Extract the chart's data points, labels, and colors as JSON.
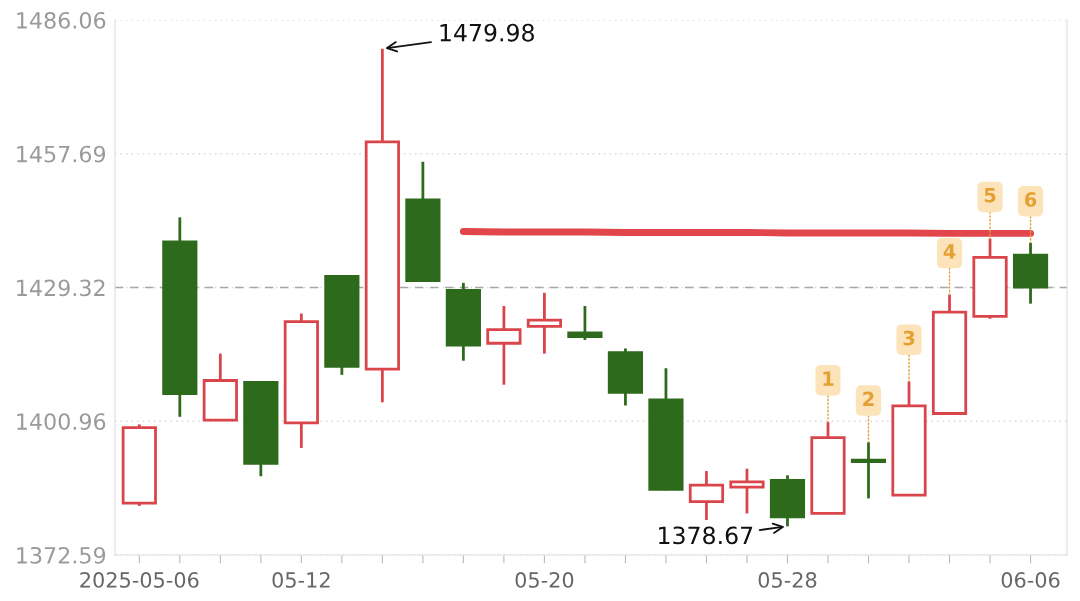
{
  "chart_data": {
    "type": "candlestick",
    "categories": [
      "2025-05-06",
      null,
      null,
      null,
      "05-12",
      null,
      null,
      null,
      null,
      null,
      "05-20",
      null,
      null,
      null,
      null,
      null,
      "05-28",
      null,
      null,
      null,
      null,
      null,
      "06-06"
    ],
    "ohlc": [
      [
        1383.6,
        1400.3,
        1383.0,
        1399.6
      ],
      [
        1439.0,
        1444.2,
        1401.9,
        1406.8
      ],
      [
        1401.2,
        1415.3,
        1401.1,
        1409.6
      ],
      [
        1409.2,
        1409.2,
        1389.3,
        1392.0
      ],
      [
        1400.6,
        1423.8,
        1395.3,
        1422.1
      ],
      [
        1431.7,
        1431.7,
        1410.8,
        1412.6
      ],
      [
        1412.0,
        1479.98,
        1405.0,
        1460.2
      ],
      [
        1447.9,
        1456.0,
        1430.5,
        1430.8
      ],
      [
        1428.7,
        1430.3,
        1413.8,
        1417.1
      ],
      [
        1417.5,
        1425.4,
        1408.7,
        1420.4
      ],
      [
        1421.1,
        1428.2,
        1415.3,
        1422.4
      ],
      [
        1419.7,
        1425.4,
        1418.2,
        1418.9
      ],
      [
        1415.5,
        1416.4,
        1404.3,
        1407.1
      ],
      [
        1405.5,
        1412.2,
        1386.3,
        1386.5
      ],
      [
        1383.9,
        1390.4,
        1380.0,
        1387.4
      ],
      [
        1387.0,
        1390.9,
        1381.4,
        1388.1
      ],
      [
        1388.4,
        1389.5,
        1378.67,
        1380.7
      ],
      [
        1381.4,
        1400.8,
        1381.3,
        1397.5
      ],
      [
        1392.7,
        1396.5,
        1384.6,
        1392.4
      ],
      [
        1385.3,
        1409.4,
        1385.1,
        1404.2
      ],
      [
        1402.6,
        1427.8,
        1402.5,
        1424.1
      ],
      [
        1423.2,
        1439.7,
        1422.7,
        1435.7
      ],
      [
        1436.2,
        1438.8,
        1425.9,
        1429.4
      ]
    ],
    "colors": [
      "#d9454b",
      "#2e6a1c",
      "#d9454b",
      "#2e6a1c",
      "#d9454b",
      "#2e6a1c",
      "#d9454b",
      "#2e6a1c",
      "#2e6a1c",
      "#d9454b",
      "#d9454b",
      "#2e6a1c",
      "#2e6a1c",
      "#2e6a1c",
      "#d9454b",
      "#d9454b",
      "#2e6a1c",
      "#d9454b",
      "#2e6a1c",
      "#d9454b",
      "#d9454b",
      "#d9454b",
      "#2e6a1c"
    ],
    "series": [
      {
        "type": "line",
        "color": "#e0464b",
        "values": [
          null,
          null,
          null,
          null,
          null,
          null,
          null,
          null,
          1441.2,
          1441.1,
          1441.1,
          1441.1,
          1441.0,
          1441.0,
          1441.0,
          1441.0,
          1440.9,
          1440.9,
          1440.9,
          1440.9,
          1440.8,
          1440.8,
          1440.8
        ]
      }
    ],
    "ylim": [
      1372.59,
      1486.06
    ],
    "yticks": [
      1372.59,
      1400.96,
      1429.32,
      1457.69,
      1486.06
    ],
    "grid": "y",
    "ref_lines": [
      {
        "axis": "y",
        "value": 1429.32,
        "color": "#a8a8a8",
        "line_style": "dashed"
      }
    ],
    "annotations": [
      "1479.98",
      {
        "text": "1378.67",
        "x": "05-28",
        "y": 1378.67
      },
      {
        "text": "1",
        "y": 1400.8
      },
      {
        "text": "2",
        "y": 1396.5
      },
      {
        "text": "3",
        "y": 1409.4
      },
      {
        "text": "4",
        "y": 1427.8
      },
      {
        "text": "5",
        "y": 1439.7
      },
      {
        "text": "6",
        "y": 1438.8
      }
    ]
  }
}
